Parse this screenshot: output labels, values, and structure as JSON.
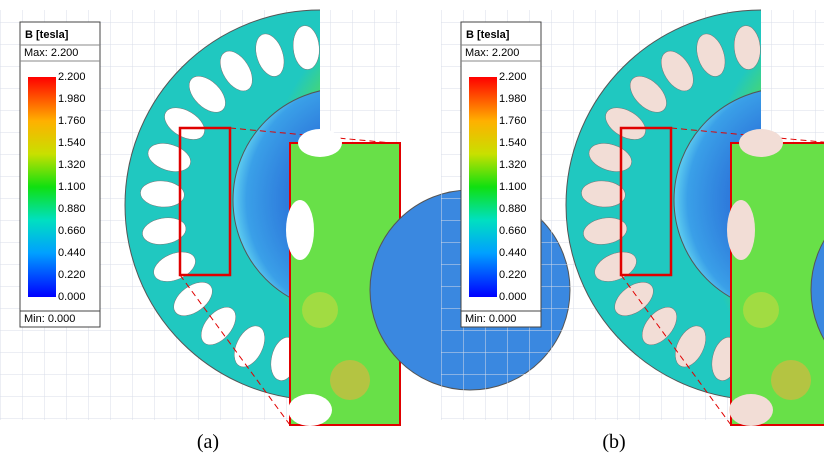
{
  "panels": [
    {
      "legend": {
        "title": "B [tesla]",
        "max": "Max: 2.200",
        "ticks": [
          "2.200",
          "1.980",
          "1.760",
          "1.540",
          "1.320",
          "1.100",
          "0.880",
          "0.660",
          "0.440",
          "0.220",
          "0.000"
        ],
        "min": "Min: 0.000"
      },
      "caption": "(a)"
    },
    {
      "legend": {
        "title": "B [tesla]",
        "max": "Max: 2.200",
        "ticks": [
          "2.200",
          "1.980",
          "1.760",
          "1.540",
          "1.320",
          "1.100",
          "0.880",
          "0.660",
          "0.440",
          "0.220",
          "0.000"
        ],
        "min": "Min: 0.000"
      },
      "caption": "(b)"
    }
  ]
}
